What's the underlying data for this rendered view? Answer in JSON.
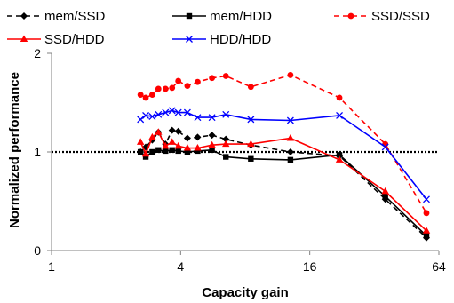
{
  "chart_data": {
    "type": "line",
    "xlabel": "Capacity gain",
    "ylabel": "Normalized performance",
    "x_scale": "log2",
    "xlim": [
      1,
      64
    ],
    "ylim": [
      0,
      2
    ],
    "x_ticks": [
      1,
      4,
      16,
      64
    ],
    "x_tick_labels": [
      "1",
      "4",
      "16",
      "64"
    ],
    "y_ticks": [
      0,
      1,
      2
    ],
    "y_tick_labels": [
      "0",
      "1",
      "2"
    ],
    "reference_line": {
      "y": 1,
      "style": "dotted",
      "color": "#000000"
    },
    "grid": false,
    "legend_position": "top",
    "series": [
      {
        "name": "mem/SSD",
        "color": "#000000",
        "dash": "dashed",
        "marker": "diamond",
        "x": [
          2.6,
          2.75,
          2.95,
          3.15,
          3.4,
          3.65,
          3.9,
          4.3,
          4.8,
          5.6,
          6.5,
          8.5,
          13,
          22,
          36,
          56
        ],
        "y": [
          1.0,
          1.05,
          1.12,
          1.2,
          1.08,
          1.22,
          1.21,
          1.14,
          1.15,
          1.17,
          1.13,
          1.07,
          1.0,
          0.96,
          0.52,
          0.13
        ]
      },
      {
        "name": "mem/HDD",
        "color": "#000000",
        "dash": "solid",
        "marker": "square",
        "x": [
          2.6,
          2.75,
          2.95,
          3.15,
          3.4,
          3.65,
          3.9,
          4.3,
          4.8,
          5.6,
          6.5,
          8.5,
          13,
          22,
          36,
          56
        ],
        "y": [
          1.0,
          0.95,
          1.0,
          1.02,
          1.01,
          1.02,
          1.01,
          1.0,
          1.01,
          1.02,
          0.95,
          0.93,
          0.92,
          0.97,
          0.55,
          0.15
        ]
      },
      {
        "name": "SSD/SSD",
        "color": "#ff0000",
        "dash": "dashed",
        "marker": "circle",
        "x": [
          2.6,
          2.75,
          2.95,
          3.15,
          3.4,
          3.65,
          3.9,
          4.3,
          4.8,
          5.6,
          6.5,
          8.5,
          13,
          22,
          36,
          56
        ],
        "y": [
          1.58,
          1.55,
          1.58,
          1.64,
          1.64,
          1.65,
          1.72,
          1.67,
          1.71,
          1.75,
          1.77,
          1.66,
          1.78,
          1.55,
          1.08,
          0.38
        ]
      },
      {
        "name": "SSD/HDD",
        "color": "#ff0000",
        "dash": "solid",
        "marker": "triangle",
        "x": [
          2.6,
          2.75,
          2.95,
          3.15,
          3.4,
          3.65,
          3.9,
          4.3,
          4.8,
          5.6,
          6.5,
          8.5,
          13,
          22,
          36,
          56
        ],
        "y": [
          1.1,
          0.98,
          1.15,
          1.2,
          1.06,
          1.1,
          1.06,
          1.04,
          1.04,
          1.07,
          1.08,
          1.08,
          1.14,
          0.92,
          0.6,
          0.2
        ]
      },
      {
        "name": "HDD/HDD",
        "color": "#0000ff",
        "dash": "solid",
        "marker": "x",
        "x": [
          2.6,
          2.75,
          2.95,
          3.15,
          3.4,
          3.65,
          3.9,
          4.3,
          4.8,
          5.6,
          6.5,
          8.5,
          13,
          22,
          36,
          56
        ],
        "y": [
          1.33,
          1.37,
          1.36,
          1.38,
          1.4,
          1.42,
          1.4,
          1.4,
          1.35,
          1.35,
          1.38,
          1.33,
          1.32,
          1.37,
          1.05,
          0.52
        ]
      }
    ]
  }
}
